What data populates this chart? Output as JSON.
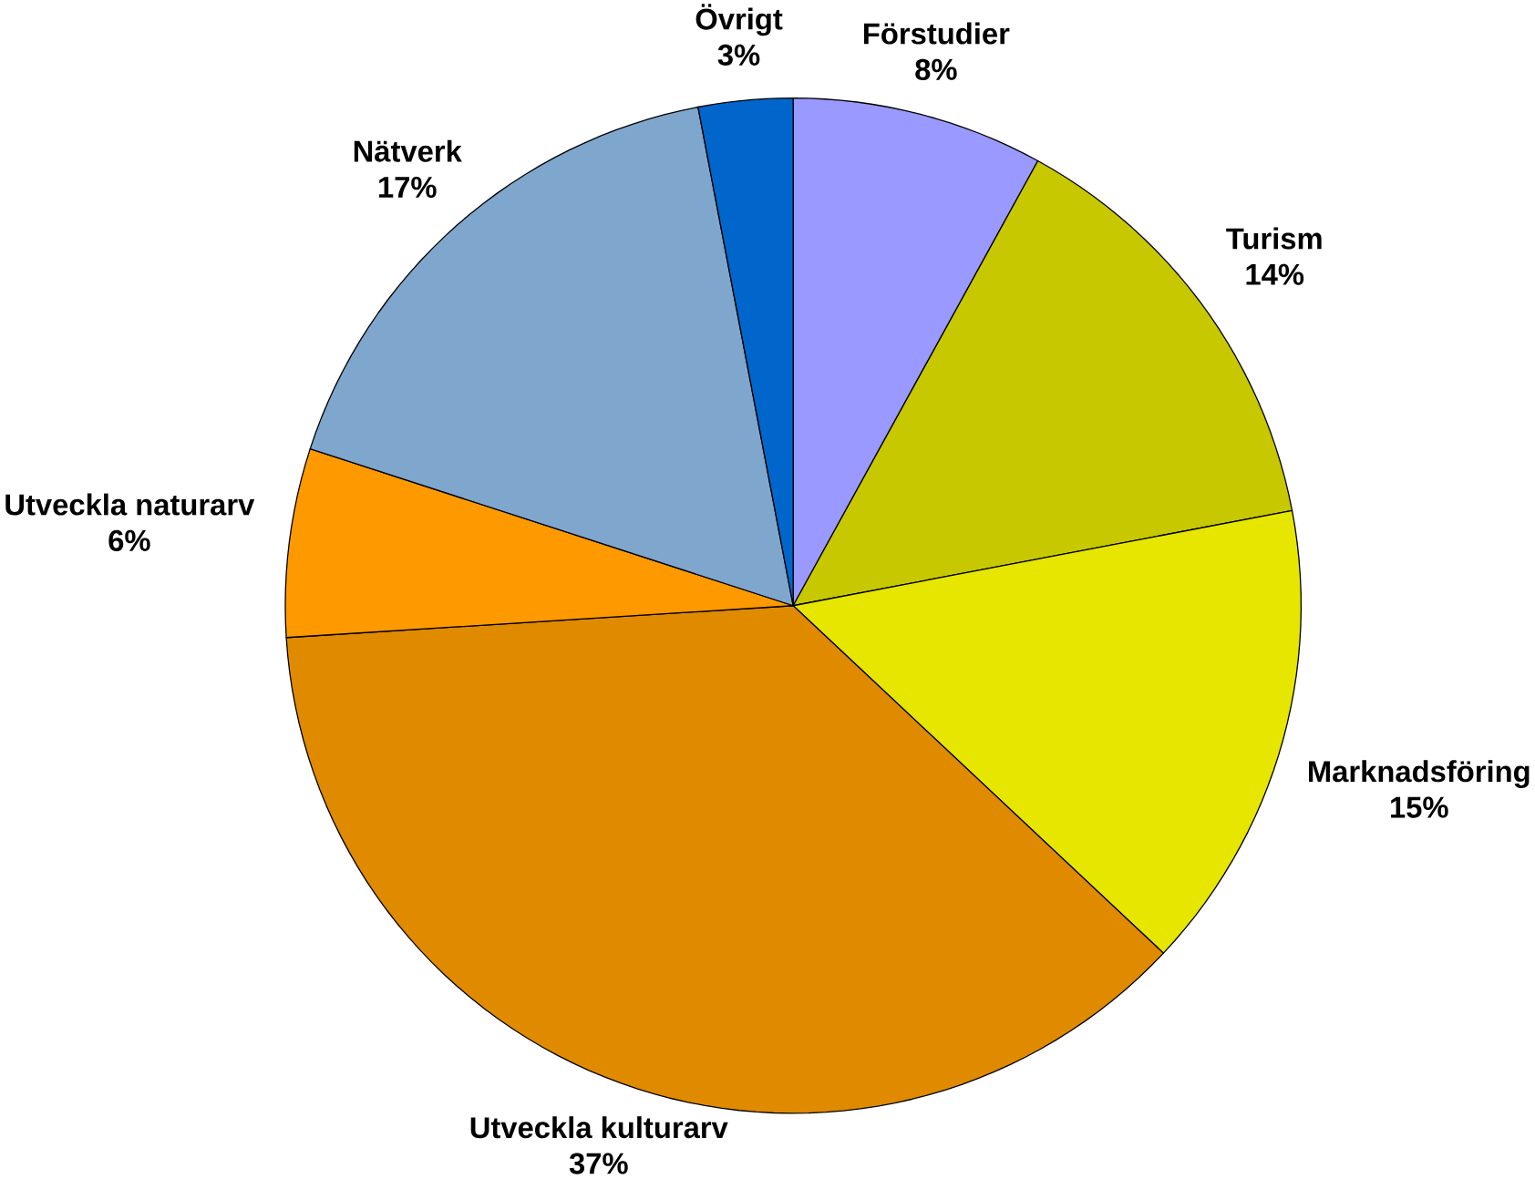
{
  "chart_data": {
    "type": "pie",
    "categories": [
      "Förstudier",
      "Turism",
      "Marknadsföring",
      "Utveckla kulturarv",
      "Utveckla naturarv",
      "Nätverk",
      "Övrigt"
    ],
    "values": [
      8,
      14,
      15,
      37,
      6,
      17,
      3
    ],
    "value_labels": [
      "8%",
      "14%",
      "15%",
      "37%",
      "6%",
      "17%",
      "3%"
    ],
    "colors": [
      "#9999ff",
      "#c8c800",
      "#e6e600",
      "#e08a00",
      "#ff9900",
      "#7fa6cc",
      "#0066cc"
    ]
  }
}
